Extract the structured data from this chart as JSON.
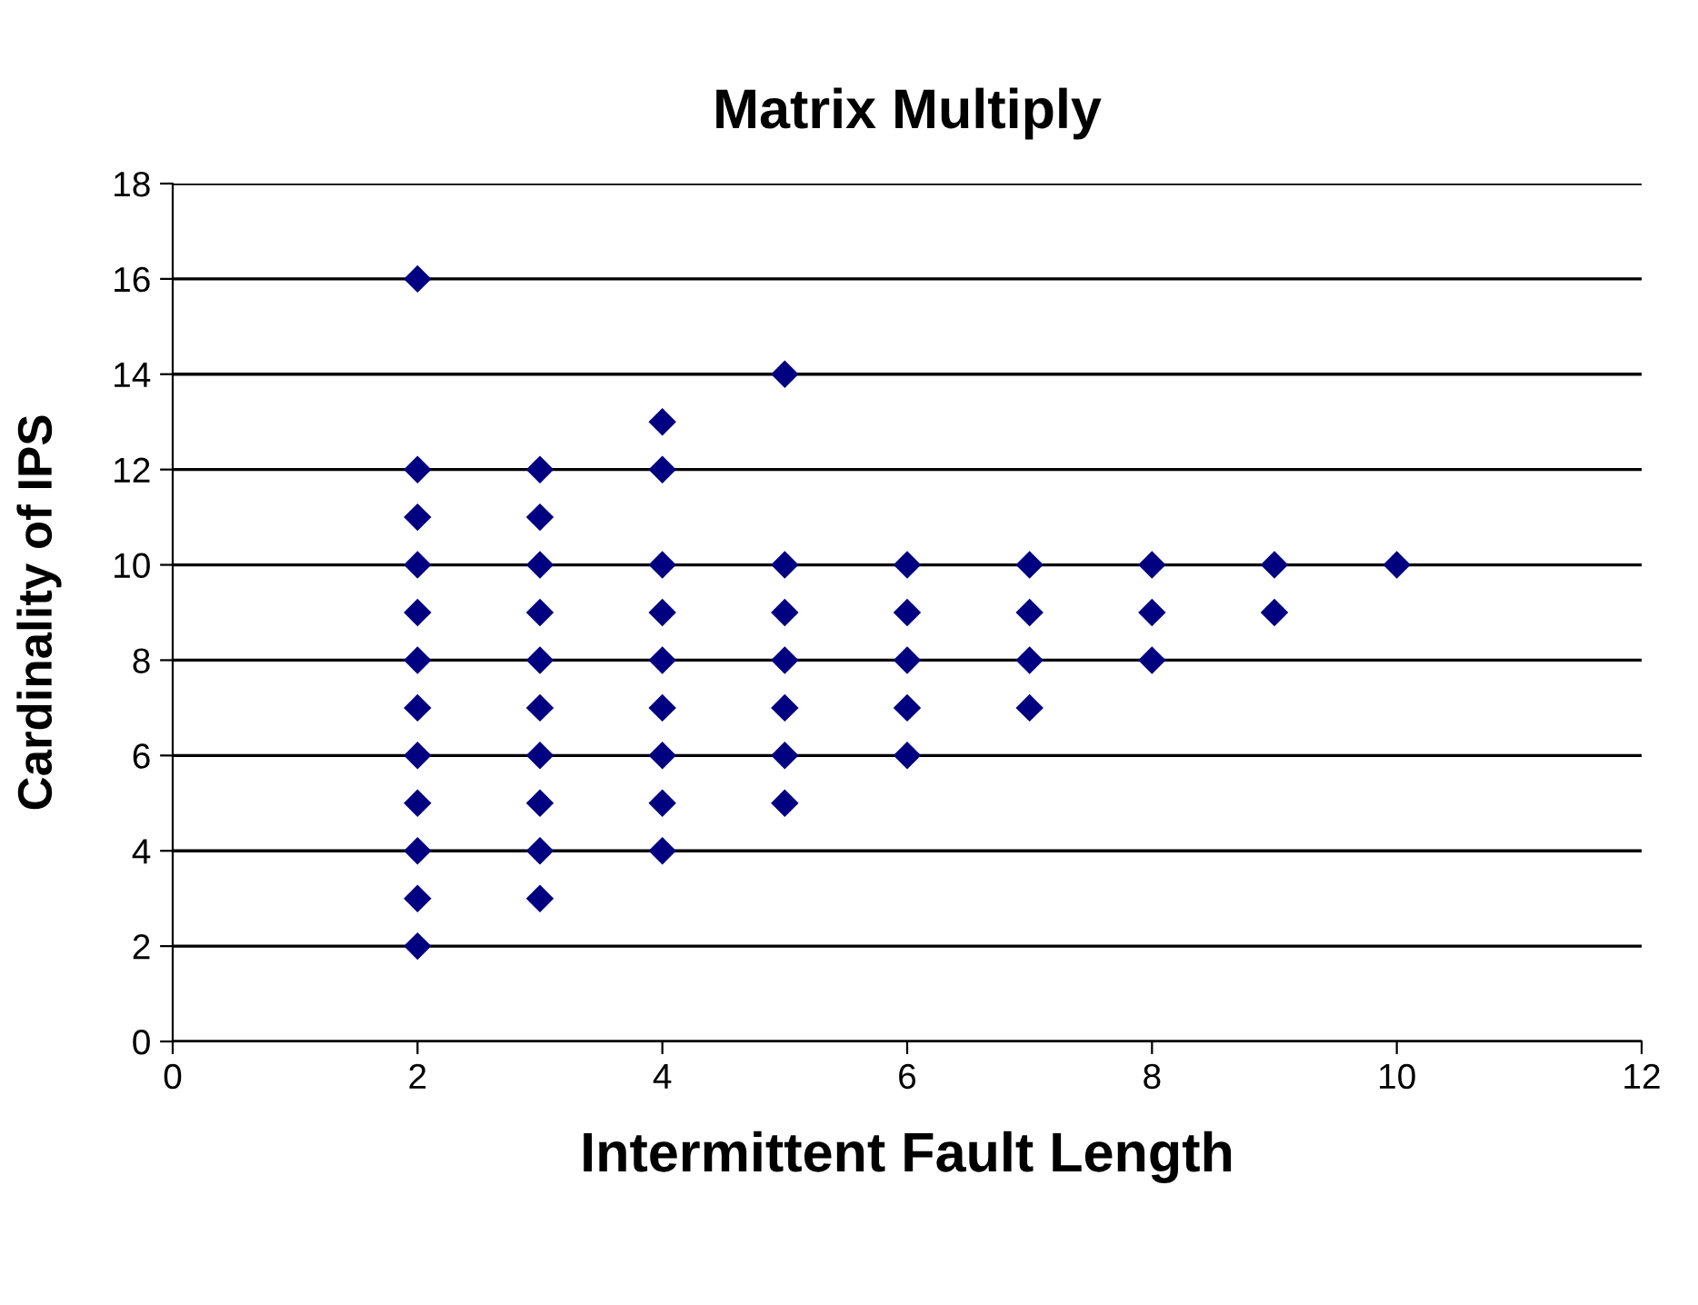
{
  "chart_data": {
    "type": "scatter",
    "title": "Matrix Multiply",
    "xlabel": "Intermittent Fault Length",
    "ylabel": "Cardinality of IPS",
    "x": [
      2,
      2,
      2,
      2,
      2,
      2,
      2,
      2,
      2,
      2,
      2,
      2,
      3,
      3,
      3,
      3,
      3,
      3,
      3,
      3,
      3,
      3,
      4,
      4,
      4,
      4,
      4,
      4,
      4,
      4,
      4,
      5,
      5,
      5,
      5,
      5,
      5,
      5,
      6,
      6,
      6,
      6,
      6,
      7,
      7,
      7,
      7,
      8,
      8,
      8,
      9,
      9,
      10
    ],
    "series": [
      {
        "color": "#000080",
        "values": [
          16,
          12,
          11,
          10,
          9,
          8,
          7,
          6,
          5,
          4,
          3,
          2,
          12,
          11,
          10,
          9,
          8,
          7,
          6,
          5,
          4,
          3,
          13,
          12,
          10,
          9,
          8,
          7,
          6,
          5,
          4,
          14,
          10,
          9,
          8,
          7,
          6,
          5,
          10,
          9,
          8,
          7,
          6,
          10,
          9,
          8,
          7,
          10,
          9,
          8,
          10,
          9,
          10
        ]
      }
    ],
    "xlim": [
      0,
      12
    ],
    "xticks": [
      0,
      2,
      4,
      6,
      8,
      10,
      12
    ],
    "ylim": [
      0,
      18
    ],
    "yticks": [
      0,
      2,
      4,
      6,
      8,
      10,
      12,
      14,
      16,
      18
    ],
    "grid": "y",
    "marker": "diamond",
    "legend": false
  }
}
